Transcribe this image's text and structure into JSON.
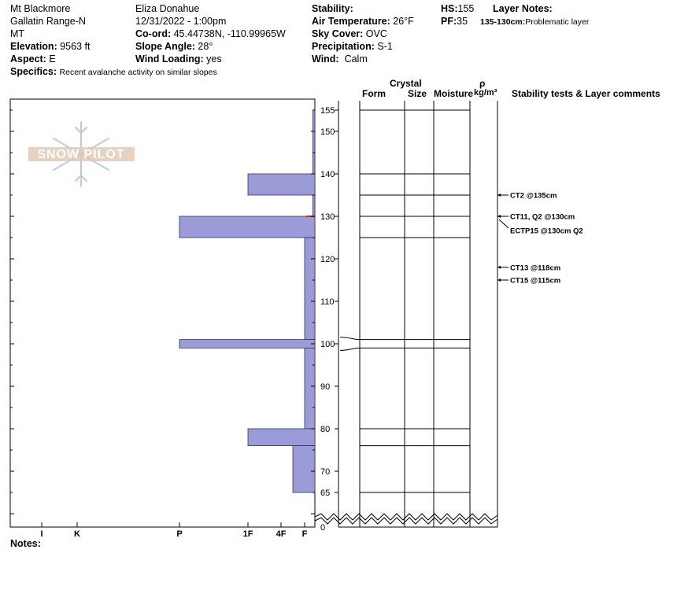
{
  "header": {
    "location": "Mt Blackmore",
    "range": "Gallatin Range-N",
    "state": "MT",
    "elevation_label": "Elevation:",
    "elevation_value": "9563 ft",
    "aspect_label": "Aspect:",
    "aspect_value": "E",
    "observer": "Eliza Donahue",
    "datetime": "12/31/2022 - 1:00pm",
    "coord_label": "Co-ord:",
    "coord_value": "45.44738N, -110.99965W",
    "slope_label": "Slope Angle:",
    "slope_value": "28°",
    "wind_loading_label": "Wind Loading:",
    "wind_loading_value": "yes",
    "stability_label": "Stability:",
    "stability_value": "",
    "air_temp_label": "Air Temperature:",
    "air_temp_value": "26°F",
    "sky_label": "Sky Cover:",
    "sky_value": "OVC",
    "precip_label": "Precipitation:",
    "precip_value": "S-1",
    "wind_label": "Wind:",
    "wind_value": "Calm",
    "hs_label": "HS:",
    "hs_value": "155",
    "pf_label": "PF:",
    "pf_value": "35",
    "layer_notes_label": "Layer Notes:",
    "layer_note_range": "135-130cm:",
    "layer_note_text": "Problematic layer",
    "specifics_label": "Specifics:",
    "specifics_value": "Recent avalanche activity on similar slopes"
  },
  "logo": {
    "text": "SNOW PILOT"
  },
  "columns": {
    "crystal": "Crystal",
    "form": "Form",
    "size": "Size",
    "moisture": "Moisture",
    "rho": "ρ",
    "density_unit": "kg/m³",
    "stability_comments": "Stability tests & Layer comments"
  },
  "notes_label": "Notes:",
  "colors": {
    "hardness_fill": "#9b9bd8",
    "hardness_stroke": "#333366",
    "weak_layer_marker": "#cc2222"
  },
  "chart_data": {
    "type": "bar",
    "orientation": "horizontal",
    "y_axis_label": "",
    "ylim": [
      60,
      155
    ],
    "y_ticks": [
      65,
      70,
      80,
      90,
      100,
      110,
      120,
      130,
      140,
      150,
      155
    ],
    "y_tick_labels": [
      "65",
      "70",
      "80",
      "90",
      "100",
      "110",
      "120",
      "130",
      "140",
      "150",
      "155"
    ],
    "y_zero_label": "0",
    "hardness_scale": [
      "I",
      "K",
      "P",
      "1F",
      "4F",
      "F"
    ],
    "hardness_scale_values": [
      6,
      5,
      4,
      3,
      2,
      1
    ],
    "layers": [
      {
        "top": 155,
        "bottom": 140,
        "hardness": 0.2
      },
      {
        "top": 140,
        "bottom": 135,
        "hardness": 3
      },
      {
        "top": 135,
        "bottom": 130,
        "hardness": 0.2
      },
      {
        "top": 130,
        "bottom": 125,
        "hardness": 4
      },
      {
        "top": 125,
        "bottom": 101,
        "hardness": 1
      },
      {
        "top": 101,
        "bottom": 99,
        "hardness": 4
      },
      {
        "top": 99,
        "bottom": 80,
        "hardness": 1
      },
      {
        "top": 80,
        "bottom": 76,
        "hardness": 3
      },
      {
        "top": 76,
        "bottom": 65,
        "hardness": 1.5
      }
    ],
    "layer_boundaries": [
      155,
      140,
      135,
      130,
      125,
      101,
      99,
      80,
      76,
      65
    ],
    "stability_tests": [
      {
        "depth": 135,
        "label": "CT2 @135cm"
      },
      {
        "depth": 130,
        "label": "CT11, Q2 @130cm"
      },
      {
        "depth": 130,
        "label": "ECTP15 @130cm  Q2"
      },
      {
        "depth": 118,
        "label": "CT13 @118cm"
      },
      {
        "depth": 115,
        "label": "CT15 @115cm"
      }
    ]
  }
}
